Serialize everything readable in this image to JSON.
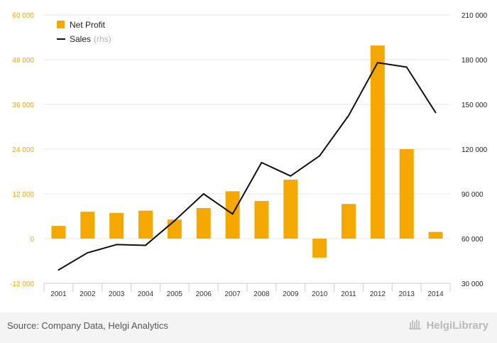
{
  "chart_data": {
    "type": "bar",
    "categories": [
      "2001",
      "2002",
      "2003",
      "2004",
      "2005",
      "2006",
      "2007",
      "2008",
      "2009",
      "2010",
      "2011",
      "2012",
      "2013",
      "2014"
    ],
    "series": [
      {
        "name": "Net Profit",
        "type": "bar",
        "axis": "left",
        "color": "#f5a800",
        "values": [
          3400,
          7200,
          6900,
          7500,
          5100,
          8200,
          12700,
          10100,
          15800,
          -5100,
          9300,
          51800,
          24000,
          1800
        ]
      },
      {
        "name": "Sales",
        "legend_note": "(rhs)",
        "type": "line",
        "axis": "right",
        "color": "#111111",
        "values": [
          39000,
          50500,
          56000,
          55500,
          72000,
          90000,
          76500,
          111000,
          102000,
          115500,
          142500,
          178000,
          175000,
          144500
        ]
      }
    ],
    "y_left": {
      "min": -12000,
      "max": 60000,
      "ticks": [
        -12000,
        0,
        12000,
        24000,
        36000,
        48000,
        60000
      ],
      "labels": [
        "-12 000",
        "0",
        "12 000",
        "24 000",
        "36 000",
        "48 000",
        "60 000"
      ]
    },
    "y_right": {
      "min": 30000,
      "max": 210000,
      "ticks": [
        30000,
        60000,
        90000,
        120000,
        150000,
        180000,
        210000
      ],
      "labels": [
        "30 000",
        "60 000",
        "90 000",
        "120 000",
        "150 000",
        "180 000",
        "210 000"
      ]
    },
    "grid": true,
    "legend_position": "top-left"
  },
  "footer": {
    "source": "Source: Company Data, Helgi Analytics",
    "logo_text": "HelgiLibrary",
    "logo_icon": "helgi-logo-icon"
  }
}
